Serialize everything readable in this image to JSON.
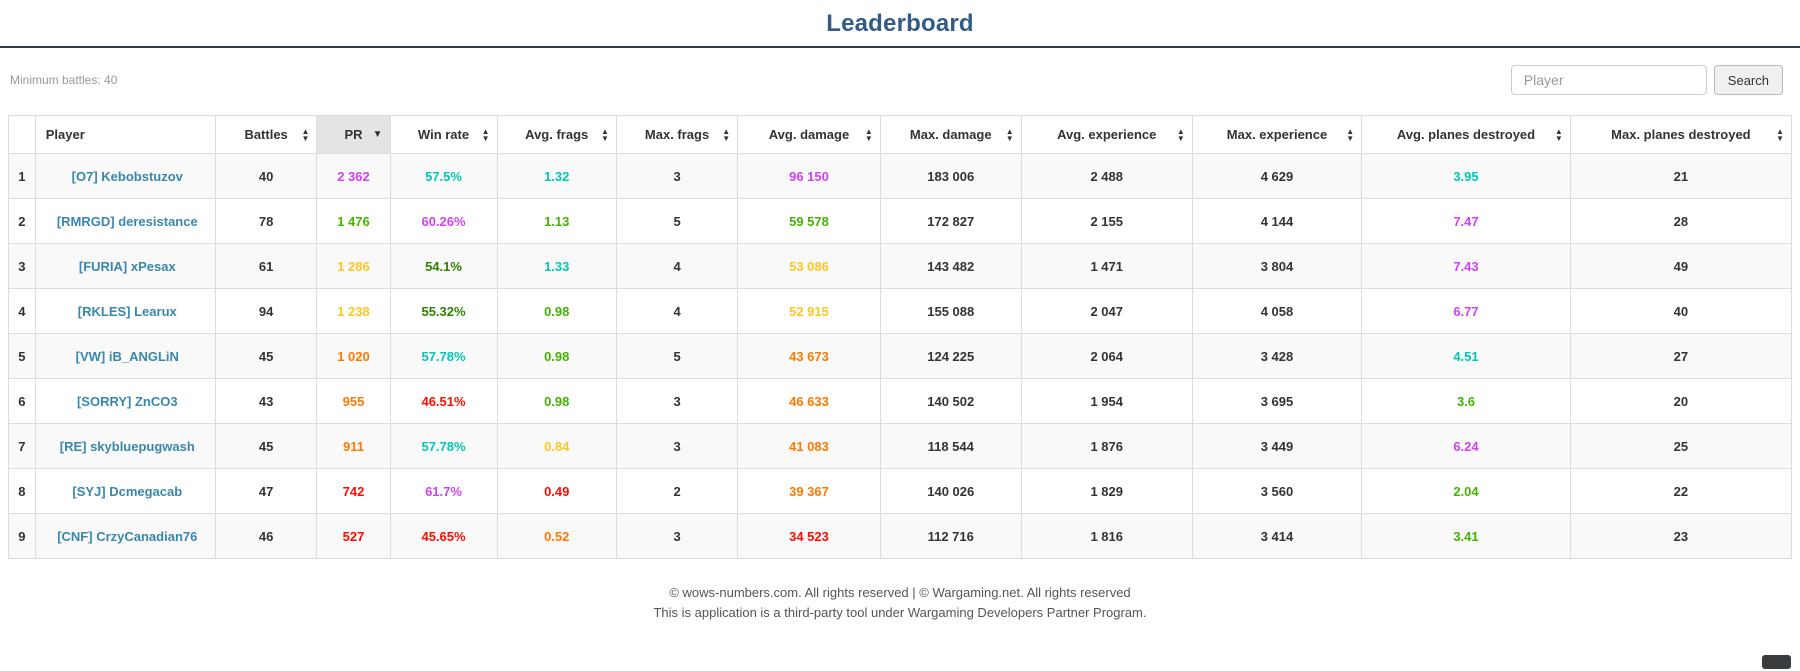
{
  "page": {
    "title": "Leaderboard"
  },
  "toolbar": {
    "min_battles_label": "Minimum battles: 40",
    "search_placeholder": "Player",
    "search_button": "Search"
  },
  "colors": {
    "title": "#335C85",
    "link": "#3A87AD",
    "rating_super_unicum": "#D042F3",
    "rating_unicum": "#02C9B3",
    "rating_dark_green": "#318000",
    "rating_green": "#44B300",
    "rating_yellow": "#FFC71F",
    "rating_orange": "#FE7903",
    "rating_red": "#FE0E00"
  },
  "table": {
    "headers": [
      {
        "label": "",
        "key": "rank",
        "sortable": false
      },
      {
        "label": "Player",
        "key": "player",
        "sortable": false
      },
      {
        "label": "Battles",
        "key": "battles",
        "sortable": true
      },
      {
        "label": "PR",
        "key": "pr",
        "sortable": true,
        "active": true,
        "direction": "desc"
      },
      {
        "label": "Win rate",
        "key": "win_rate",
        "sortable": true
      },
      {
        "label": "Avg. frags",
        "key": "avg_frags",
        "sortable": true
      },
      {
        "label": "Max. frags",
        "key": "max_frags",
        "sortable": true
      },
      {
        "label": "Avg. damage",
        "key": "avg_damage",
        "sortable": true
      },
      {
        "label": "Max. damage",
        "key": "max_damage",
        "sortable": true
      },
      {
        "label": "Avg. experience",
        "key": "avg_experience",
        "sortable": true
      },
      {
        "label": "Max. experience",
        "key": "max_experience",
        "sortable": true
      },
      {
        "label": "Avg. planes destroyed",
        "key": "avg_planes",
        "sortable": true
      },
      {
        "label": "Max. planes destroyed",
        "key": "max_planes",
        "sortable": true
      }
    ],
    "rows": [
      {
        "rank": "1",
        "player": "[O7] Kebobstuzov",
        "battles": "40",
        "pr": "2 362",
        "win_rate": "57.5%",
        "avg_frags": "1.32",
        "max_frags": "3",
        "avg_damage": "96 150",
        "max_damage": "183 006",
        "avg_experience": "2 488",
        "max_experience": "4 629",
        "avg_planes": "3.95",
        "max_planes": "21",
        "colors": {
          "pr": "#D042F3",
          "win_rate": "#02C9B3",
          "avg_frags": "#02C9B3",
          "avg_damage": "#D042F3",
          "avg_planes": "#02C9B3"
        }
      },
      {
        "rank": "2",
        "player": "[RMRGD] deresistance",
        "battles": "78",
        "pr": "1 476",
        "win_rate": "60.26%",
        "avg_frags": "1.13",
        "max_frags": "5",
        "avg_damage": "59 578",
        "max_damage": "172 827",
        "avg_experience": "2 155",
        "max_experience": "4 144",
        "avg_planes": "7.47",
        "max_planes": "28",
        "colors": {
          "pr": "#44B300",
          "win_rate": "#D042F3",
          "avg_frags": "#44B300",
          "avg_damage": "#44B300",
          "avg_planes": "#D042F3"
        }
      },
      {
        "rank": "3",
        "player": "[FURIA] xPesax",
        "battles": "61",
        "pr": "1 286",
        "win_rate": "54.1%",
        "avg_frags": "1.33",
        "max_frags": "4",
        "avg_damage": "53 086",
        "max_damage": "143 482",
        "avg_experience": "1 471",
        "max_experience": "3 804",
        "avg_planes": "7.43",
        "max_planes": "49",
        "colors": {
          "pr": "#FFC71F",
          "win_rate": "#318000",
          "avg_frags": "#02C9B3",
          "avg_damage": "#FFC71F",
          "avg_planes": "#D042F3"
        }
      },
      {
        "rank": "4",
        "player": "[RKLES] Learux",
        "battles": "94",
        "pr": "1 238",
        "win_rate": "55.32%",
        "avg_frags": "0.98",
        "max_frags": "4",
        "avg_damage": "52 915",
        "max_damage": "155 088",
        "avg_experience": "2 047",
        "max_experience": "4 058",
        "avg_planes": "6.77",
        "max_planes": "40",
        "colors": {
          "pr": "#FFC71F",
          "win_rate": "#318000",
          "avg_frags": "#44B300",
          "avg_damage": "#FFC71F",
          "avg_planes": "#D042F3"
        }
      },
      {
        "rank": "5",
        "player": "[VW] iB_ANGLiN",
        "battles": "45",
        "pr": "1 020",
        "win_rate": "57.78%",
        "avg_frags": "0.98",
        "max_frags": "5",
        "avg_damage": "43 673",
        "max_damage": "124 225",
        "avg_experience": "2 064",
        "max_experience": "3 428",
        "avg_planes": "4.51",
        "max_planes": "27",
        "colors": {
          "pr": "#FE7903",
          "win_rate": "#02C9B3",
          "avg_frags": "#44B300",
          "avg_damage": "#FE7903",
          "avg_planes": "#02C9B3"
        }
      },
      {
        "rank": "6",
        "player": "[SORRY] ZnCO3",
        "battles": "43",
        "pr": "955",
        "win_rate": "46.51%",
        "avg_frags": "0.98",
        "max_frags": "3",
        "avg_damage": "46 633",
        "max_damage": "140 502",
        "avg_experience": "1 954",
        "max_experience": "3 695",
        "avg_planes": "3.6",
        "max_planes": "20",
        "colors": {
          "pr": "#FE7903",
          "win_rate": "#FE0E00",
          "avg_frags": "#44B300",
          "avg_damage": "#FE7903",
          "avg_planes": "#44B300"
        }
      },
      {
        "rank": "7",
        "player": "[RE] skybluepugwash",
        "battles": "45",
        "pr": "911",
        "win_rate": "57.78%",
        "avg_frags": "0.84",
        "max_frags": "3",
        "avg_damage": "41 083",
        "max_damage": "118 544",
        "avg_experience": "1 876",
        "max_experience": "3 449",
        "avg_planes": "6.24",
        "max_planes": "25",
        "colors": {
          "pr": "#FE7903",
          "win_rate": "#02C9B3",
          "avg_frags": "#FFC71F",
          "avg_damage": "#FE7903",
          "avg_planes": "#D042F3"
        }
      },
      {
        "rank": "8",
        "player": "[SYJ] Dcmegacab",
        "battles": "47",
        "pr": "742",
        "win_rate": "61.7%",
        "avg_frags": "0.49",
        "max_frags": "2",
        "avg_damage": "39 367",
        "max_damage": "140 026",
        "avg_experience": "1 829",
        "max_experience": "3 560",
        "avg_planes": "2.04",
        "max_planes": "22",
        "colors": {
          "pr": "#FE0E00",
          "win_rate": "#D042F3",
          "avg_frags": "#FE0E00",
          "avg_damage": "#FE7903",
          "avg_planes": "#44B300"
        }
      },
      {
        "rank": "9",
        "player": "[CNF] CrzyCanadian76",
        "battles": "46",
        "pr": "527",
        "win_rate": "45.65%",
        "avg_frags": "0.52",
        "max_frags": "3",
        "avg_damage": "34 523",
        "max_damage": "112 716",
        "avg_experience": "1 816",
        "max_experience": "3 414",
        "avg_planes": "3.41",
        "max_planes": "23",
        "colors": {
          "pr": "#FE0E00",
          "win_rate": "#FE0E00",
          "avg_frags": "#FE7903",
          "avg_damage": "#FE0E00",
          "avg_planes": "#44B300"
        }
      }
    ]
  },
  "footer": {
    "line1": "© wows-numbers.com. All rights reserved | © Wargaming.net. All rights reserved",
    "line2": "This is application is a third-party tool under Wargaming Developers Partner Program."
  }
}
